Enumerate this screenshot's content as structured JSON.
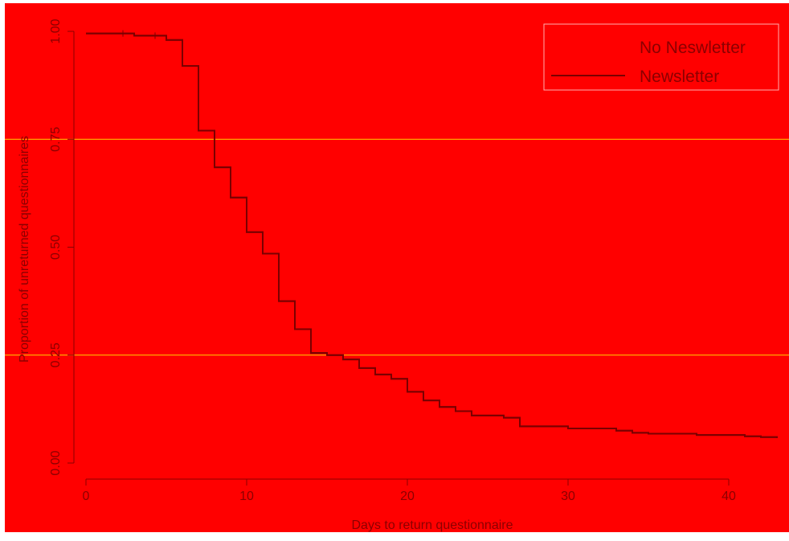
{
  "colors": {
    "panel": "#ff0000",
    "curve": "#7a0000",
    "refline": "#ffd200",
    "text": "#8b0000",
    "legend_border": "#ffb0b0"
  },
  "chart_data": {
    "type": "line",
    "xlabel": "Days to return questionnaire",
    "ylabel": "Proportion of unreturned questionnaires",
    "xlim": [
      0,
      43
    ],
    "ylim": [
      0,
      1
    ],
    "x_ticks": [
      "0",
      "10",
      "20",
      "30",
      "40"
    ],
    "y_ticks": [
      "0.00",
      "0.25",
      "0.50",
      "0.75",
      "1.00"
    ],
    "reference_lines": [
      0.25,
      0.75
    ],
    "grid": false,
    "legend_position": "top-right",
    "legend": [
      "No Neswletter",
      "Newsletter"
    ],
    "series": [
      {
        "name": "No Neswletter",
        "step": true,
        "x": [
          0,
          3,
          5,
          6,
          7,
          8,
          9,
          10,
          11,
          12,
          13,
          14,
          15,
          16,
          17,
          18,
          19,
          20,
          21,
          22,
          23,
          24,
          26,
          27,
          30,
          31,
          33,
          34,
          35,
          38,
          39,
          40,
          41,
          42,
          43
        ],
        "y": [
          0.995,
          0.99,
          0.98,
          0.92,
          0.77,
          0.685,
          0.615,
          0.535,
          0.485,
          0.375,
          0.31,
          0.255,
          0.25,
          0.24,
          0.22,
          0.205,
          0.195,
          0.165,
          0.145,
          0.13,
          0.12,
          0.11,
          0.105,
          0.085,
          0.08,
          0.08,
          0.075,
          0.07,
          0.068,
          0.065,
          0.065,
          0.065,
          0.062,
          0.06,
          0.058
        ]
      },
      {
        "name": "Newsletter",
        "step": true,
        "x": [
          0,
          3,
          5,
          6,
          7,
          8,
          9,
          10,
          11,
          12,
          13,
          14,
          15,
          16,
          17,
          18,
          19,
          20,
          21,
          22,
          23,
          24,
          26,
          27,
          30,
          31,
          33,
          34,
          35,
          38,
          39,
          40,
          41,
          42,
          43
        ],
        "y": [
          0.995,
          0.99,
          0.98,
          0.92,
          0.77,
          0.685,
          0.615,
          0.535,
          0.485,
          0.375,
          0.31,
          0.255,
          0.25,
          0.24,
          0.22,
          0.205,
          0.195,
          0.165,
          0.145,
          0.13,
          0.12,
          0.11,
          0.105,
          0.085,
          0.08,
          0.08,
          0.075,
          0.07,
          0.068,
          0.065,
          0.065,
          0.065,
          0.062,
          0.06,
          0.058
        ]
      }
    ]
  }
}
